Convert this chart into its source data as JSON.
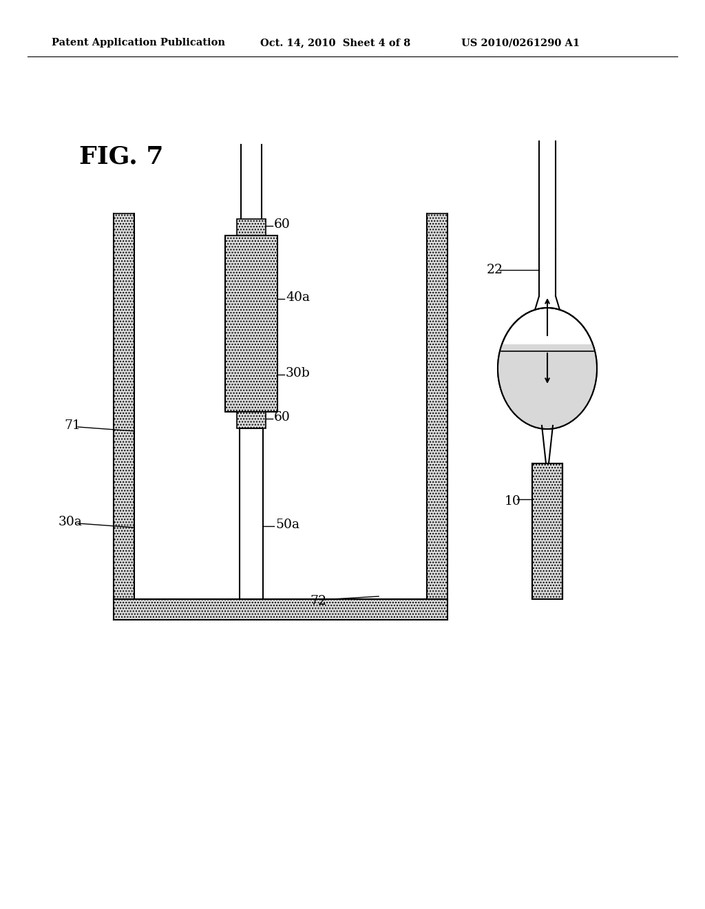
{
  "header_left": "Patent Application Publication",
  "header_center": "Oct. 14, 2010  Sheet 4 of 8",
  "header_right": "US 2010/0261290 A1",
  "fig_label": "FIG. 7",
  "bg_color": "#ffffff",
  "labels": {
    "60_top": "60",
    "40a": "40a",
    "30b": "30b",
    "60_mid": "60",
    "30a": "30a",
    "50a": "50a",
    "71": "71",
    "72": "72",
    "22": "22",
    "10": "10"
  }
}
